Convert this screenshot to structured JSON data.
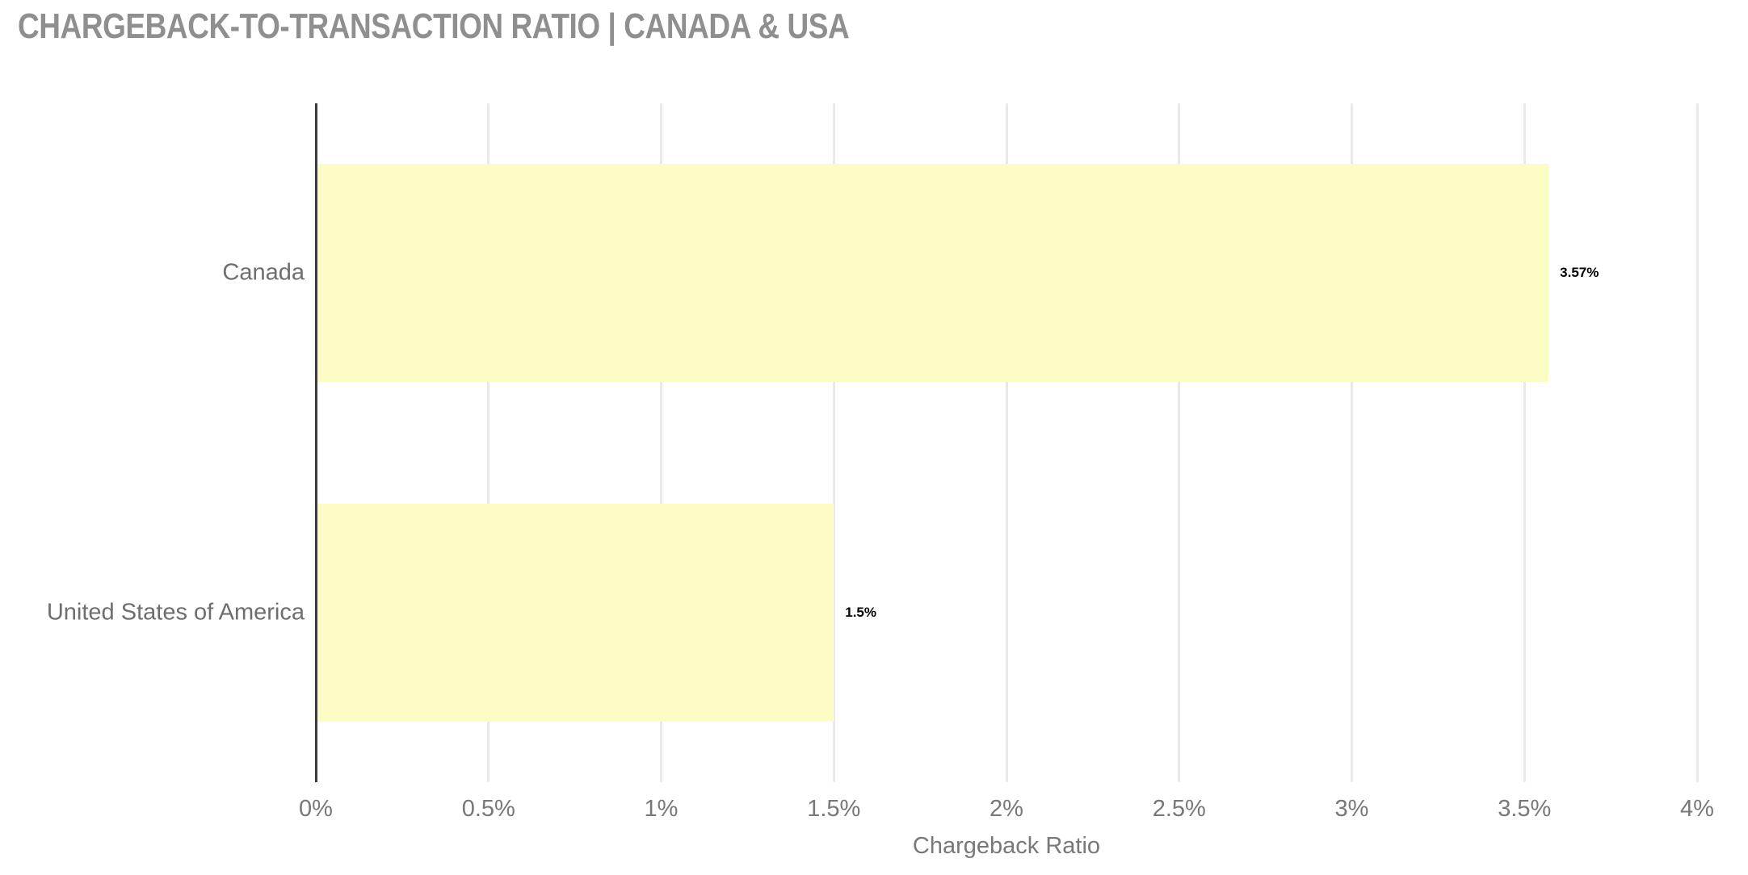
{
  "title": "CHARGEBACK-TO-TRANSACTION RATIO | CANADA & USA",
  "chart_data": {
    "type": "bar",
    "orientation": "horizontal",
    "title": "CHARGEBACK-TO-TRANSACTION RATIO | CANADA & USA",
    "categories": [
      "Canada",
      "United States of America"
    ],
    "values": [
      3.57,
      1.5
    ],
    "value_labels": [
      "3.57%",
      "1.5%"
    ],
    "xlabel": "Chargeback Ratio",
    "ylabel": "",
    "xlim": [
      0,
      4
    ],
    "x_ticks": [
      0,
      0.5,
      1,
      1.5,
      2,
      2.5,
      3,
      3.5,
      4
    ],
    "x_tick_labels": [
      "0%",
      "0.5%",
      "1%",
      "1.5%",
      "2%",
      "2.5%",
      "3%",
      "3.5%",
      "4%"
    ],
    "grid": "vertical-only",
    "legend": "none",
    "colors": {
      "bar_fill": "#fcfcc5",
      "axis_line": "#3d3d3d",
      "gridline": "#e9e9e9",
      "title_text": "#8f8f8f",
      "category_text": "#6e6e6e",
      "tick_text": "#787878",
      "value_label_text": "#000000",
      "background": "#ffffff"
    }
  }
}
